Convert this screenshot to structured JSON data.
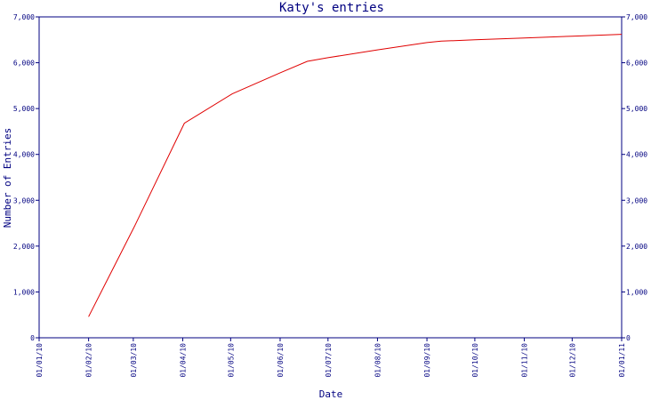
{
  "chart_data": {
    "type": "line",
    "title": "Katy's entries",
    "xlabel": "Date",
    "ylabel": "Number of Entries",
    "x_ticks": [
      "01/01/10",
      "01/02/10",
      "01/03/10",
      "01/04/10",
      "01/05/10",
      "01/06/10",
      "01/07/10",
      "01/08/10",
      "01/09/10",
      "01/10/10",
      "01/11/10",
      "01/12/10",
      "01/01/11"
    ],
    "y_ticks": [
      "0",
      "1,000",
      "2,000",
      "3,000",
      "4,000",
      "5,000",
      "6,000",
      "7,000"
    ],
    "ylim": [
      0,
      7000
    ],
    "xlim": [
      "2010-01-01",
      "2011-01-01"
    ],
    "right_axis": true,
    "grid": false,
    "colors": {
      "axis": "#000080",
      "series": "#e00000"
    },
    "series": [
      {
        "x": [
          "2010-02-01",
          "2010-03-02",
          "2010-04-02",
          "2010-05-02",
          "2010-06-01",
          "2010-06-18",
          "2010-07-01",
          "2010-08-01",
          "2010-09-01",
          "2010-09-10",
          "2010-10-01",
          "2010-11-01",
          "2010-12-01",
          "2011-01-01"
        ],
        "y": [
          460,
          2450,
          4680,
          5320,
          5780,
          6030,
          6110,
          6280,
          6440,
          6470,
          6500,
          6540,
          6580,
          6620
        ]
      }
    ]
  }
}
